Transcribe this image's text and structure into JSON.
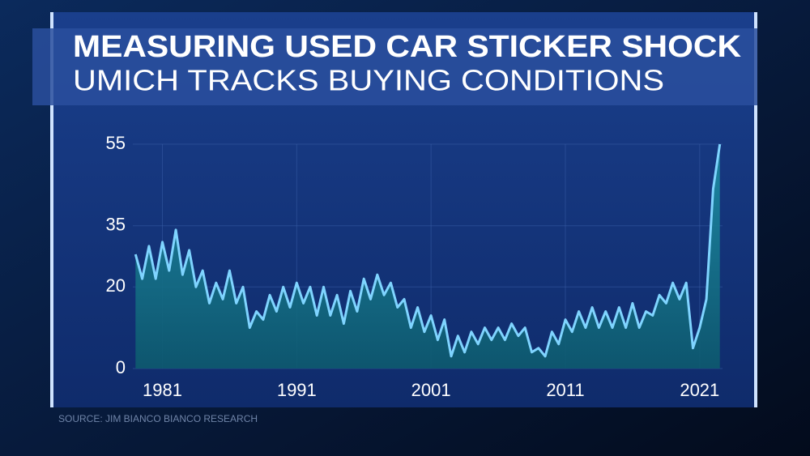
{
  "chart_data": {
    "type": "area-line",
    "title": "MEASURING USED CAR STICKER SHOCK",
    "subtitle": "UMICH TRACKS BUYING CONDITIONS",
    "source": "SOURCE: JIM BIANCO BIANCO RESEARCH",
    "color": "#7fd4ff",
    "x": [
      1979,
      1979.5,
      1980,
      1980.5,
      1981,
      1981.5,
      1982,
      1982.5,
      1983,
      1983.5,
      1984,
      1984.5,
      1985,
      1985.5,
      1986,
      1986.5,
      1987,
      1987.5,
      1988,
      1988.5,
      1989,
      1989.5,
      1990,
      1990.5,
      1991,
      1991.5,
      1992,
      1992.5,
      1993,
      1993.5,
      1994,
      1994.5,
      1995,
      1995.5,
      1996,
      1996.5,
      1997,
      1997.5,
      1998,
      1998.5,
      1999,
      1999.5,
      2000,
      2000.5,
      2001,
      2001.5,
      2002,
      2002.5,
      2003,
      2003.5,
      2004,
      2004.5,
      2005,
      2005.5,
      2006,
      2006.5,
      2007,
      2007.5,
      2008,
      2008.5,
      2009,
      2009.5,
      2010,
      2010.5,
      2011,
      2011.5,
      2012,
      2012.5,
      2013,
      2013.5,
      2014,
      2014.5,
      2015,
      2015.5,
      2016,
      2016.5,
      2017,
      2017.5,
      2018,
      2018.5,
      2019,
      2019.5,
      2020,
      2020.5,
      2021,
      2021.5,
      2022,
      2022.5
    ],
    "values": [
      28,
      22,
      30,
      22,
      31,
      24,
      34,
      23,
      29,
      20,
      24,
      16,
      21,
      17,
      24,
      16,
      20,
      10,
      14,
      12,
      18,
      14,
      20,
      15,
      21,
      16,
      20,
      13,
      20,
      13,
      18,
      11,
      19,
      14,
      22,
      17,
      23,
      18,
      21,
      15,
      17,
      10,
      15,
      9,
      13,
      7,
      12,
      3,
      8,
      4,
      9,
      6,
      10,
      7,
      10,
      7,
      11,
      8,
      10,
      4,
      5,
      3,
      9,
      6,
      12,
      9,
      14,
      10,
      15,
      10,
      14,
      10,
      15,
      10,
      16,
      10,
      14,
      13,
      18,
      16,
      21,
      17,
      21,
      5,
      10,
      17,
      44,
      55
    ],
    "xlim": [
      1978.8,
      2022.7
    ],
    "xticks": [
      1981,
      1991,
      2001,
      2011,
      2021
    ],
    "ylim": [
      0,
      55
    ],
    "yticks": [
      0,
      20,
      35,
      55
    ]
  }
}
